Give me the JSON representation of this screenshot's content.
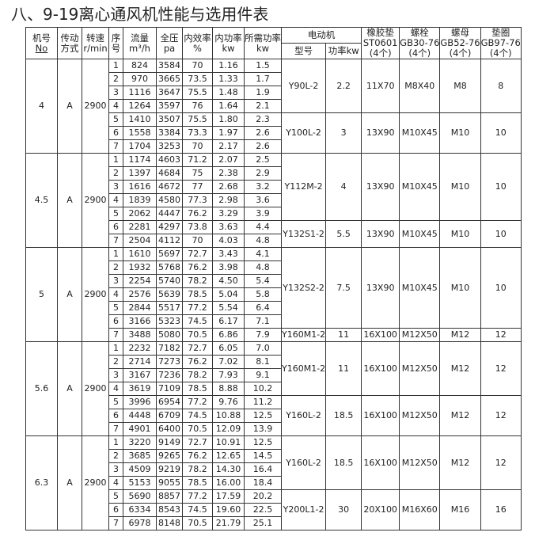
{
  "title": "八、9-19离心通风机性能与选用件表",
  "headers": {
    "machine_no": "机号",
    "machine_no_sub": "No",
    "drive": "传动",
    "drive_sub": "方式",
    "speed": "转速",
    "speed_sub": "r/min",
    "seq": "序",
    "seq_sub": "号",
    "flow": "流量",
    "flow_sub": "m³/h",
    "pressure": "全压",
    "pressure_sub": "pa",
    "eff": "内效率",
    "eff_sub": "%",
    "inner_power": "内功率",
    "inner_power_sub": "kw",
    "req_power": "所需功率",
    "req_power_sub": "kw",
    "motor": "电动机",
    "motor_model": "型号",
    "motor_power": "功率kw",
    "pad": "橡胶垫",
    "pad_sub": "ST0601",
    "pad_qty": "(4个)",
    "bolt": "螺栓",
    "bolt_sub": "GB30-76",
    "bolt_qty": "(4个)",
    "nut": "螺母",
    "nut_sub": "GB52-76",
    "nut_qty": "(4个)",
    "washer": "垫圈",
    "washer_sub": "GB97-76",
    "washer_qty": "(4个)"
  },
  "groups": [
    {
      "no": "4",
      "drive": "A",
      "speed": "2900",
      "rows": [
        [
          "1",
          "824",
          "3584",
          "70",
          "1.16",
          "1.5"
        ],
        [
          "2",
          "970",
          "3665",
          "73.5",
          "1.33",
          "1.7"
        ],
        [
          "3",
          "1116",
          "3647",
          "75.5",
          "1.48",
          "1.9"
        ],
        [
          "4",
          "1264",
          "3597",
          "76",
          "1.64",
          "2.1"
        ],
        [
          "5",
          "1410",
          "3507",
          "75.5",
          "1.80",
          "2.3"
        ],
        [
          "6",
          "1558",
          "3384",
          "73.3",
          "1.97",
          "2.6"
        ],
        [
          "7",
          "1704",
          "3253",
          "70",
          "2.17",
          "2.6"
        ]
      ],
      "motors": [
        {
          "span": 4,
          "model": "Y90L-2",
          "power": "2.2",
          "pad": "11X70",
          "bolt": "M8X40",
          "nut": "M8",
          "washer": "8"
        },
        {
          "span": 3,
          "model": "Y100L-2",
          "power": "3",
          "pad": "13X90",
          "bolt": "M10X45",
          "nut": "M10",
          "washer": "10"
        }
      ]
    },
    {
      "no": "4.5",
      "drive": "A",
      "speed": "2900",
      "rows": [
        [
          "1",
          "1174",
          "4603",
          "71.2",
          "2.07",
          "2.5"
        ],
        [
          "2",
          "1397",
          "4684",
          "75",
          "2.38",
          "2.9"
        ],
        [
          "3",
          "1616",
          "4672",
          "77",
          "2.68",
          "3.2"
        ],
        [
          "4",
          "1839",
          "4580",
          "77.3",
          "2.98",
          "3.6"
        ],
        [
          "5",
          "2062",
          "4447",
          "76.2",
          "3.29",
          "3.9"
        ],
        [
          "6",
          "2281",
          "4297",
          "73.8",
          "3.63",
          "4.4"
        ],
        [
          "7",
          "2504",
          "4112",
          "70",
          "4.03",
          "4.8"
        ]
      ],
      "motors": [
        {
          "span": 5,
          "model": "Y112M-2",
          "power": "4",
          "pad": "13X90",
          "bolt": "M10X45",
          "nut": "M10",
          "washer": "10"
        },
        {
          "span": 2,
          "model": "Y132S1-2",
          "power": "5.5",
          "pad": "13X90",
          "bolt": "M10X45",
          "nut": "M10",
          "washer": "10"
        }
      ]
    },
    {
      "no": "5",
      "drive": "A",
      "speed": "2900",
      "rows": [
        [
          "1",
          "1610",
          "5697",
          "72.7",
          "3.43",
          "4.1"
        ],
        [
          "2",
          "1932",
          "5768",
          "76.2",
          "3.98",
          "4.8"
        ],
        [
          "3",
          "2254",
          "5740",
          "78.2",
          "4.50",
          "5.4"
        ],
        [
          "4",
          "2576",
          "5639",
          "78.5",
          "5.04",
          "5.8"
        ],
        [
          "5",
          "2844",
          "5517",
          "77.2",
          "5.54",
          "6.4"
        ],
        [
          "6",
          "3166",
          "5323",
          "74.5",
          "6.17",
          "7.1"
        ],
        [
          "7",
          "3488",
          "5080",
          "70.5",
          "6.86",
          "7.9"
        ]
      ],
      "motors": [
        {
          "span": 6,
          "model": "Y132S2-2",
          "power": "7.5",
          "pad": "13X90",
          "bolt": "M10X45",
          "nut": "M10",
          "washer": "10"
        },
        {
          "span": 1,
          "model": "Y160M1-2",
          "power": "11",
          "pad": "16X100",
          "bolt": "M12X50",
          "nut": "M12",
          "washer": "12"
        }
      ]
    },
    {
      "no": "5.6",
      "drive": "A",
      "speed": "2900",
      "rows": [
        [
          "1",
          "2232",
          "7182",
          "72.7",
          "6.05",
          "7.0"
        ],
        [
          "2",
          "2714",
          "7273",
          "76.2",
          "7.02",
          "8.1"
        ],
        [
          "3",
          "3167",
          "7236",
          "78.2",
          "7.93",
          "9.1"
        ],
        [
          "4",
          "3619",
          "7109",
          "78.5",
          "8.88",
          "10.2"
        ],
        [
          "5",
          "3996",
          "6954",
          "77.2",
          "9.76",
          "11.2"
        ],
        [
          "6",
          "4448",
          "6709",
          "74.5",
          "10.88",
          "12.5"
        ],
        [
          "7",
          "4901",
          "6400",
          "70.5",
          "12.09",
          "13.9"
        ]
      ],
      "motors": [
        {
          "span": 4,
          "model": "Y160M1-2",
          "power": "11",
          "pad": "16X100",
          "bolt": "M12X50",
          "nut": "M12",
          "washer": "12"
        },
        {
          "span": 3,
          "model": "Y160L-2",
          "power": "18.5",
          "pad": "16X100",
          "bolt": "M12X50",
          "nut": "M12",
          "washer": "12"
        }
      ]
    },
    {
      "no": "6.3",
      "drive": "A",
      "speed": "2900",
      "rows": [
        [
          "1",
          "3220",
          "9149",
          "72.7",
          "10.91",
          "12.5"
        ],
        [
          "2",
          "3685",
          "9265",
          "76.2",
          "12.65",
          "14.5"
        ],
        [
          "3",
          "4509",
          "9219",
          "78.2",
          "14.30",
          "16.4"
        ],
        [
          "4",
          "5153",
          "9055",
          "78.5",
          "16.00",
          "18.4"
        ],
        [
          "5",
          "5690",
          "8857",
          "77.2",
          "17.59",
          "20.2"
        ],
        [
          "6",
          "6334",
          "8543",
          "74.5",
          "19.60",
          "22.5"
        ],
        [
          "7",
          "6978",
          "8148",
          "70.5",
          "21.79",
          "25.1"
        ]
      ],
      "motors": [
        {
          "span": 4,
          "model": "Y160L-2",
          "power": "18.5",
          "pad": "16X100",
          "bolt": "M12X50",
          "nut": "M12",
          "washer": "12"
        },
        {
          "span": 3,
          "model": "Y200L1-2",
          "power": "30",
          "pad": "20X100",
          "bolt": "M16X60",
          "nut": "M16",
          "washer": "16"
        }
      ]
    }
  ]
}
